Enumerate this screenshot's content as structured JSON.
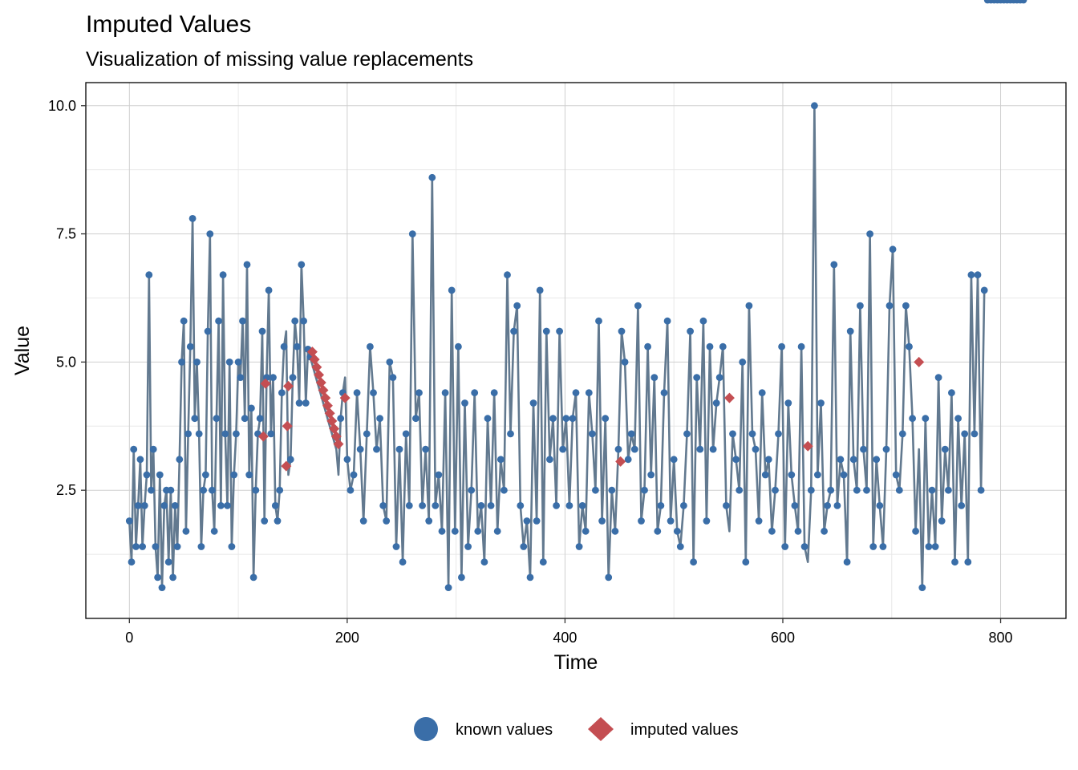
{
  "chart_data": {
    "type": "line",
    "title": "Imputed Values",
    "subtitle": "Visualization of missing value replacements",
    "xlabel": "Time",
    "ylabel": "Value",
    "xlim": [
      -40,
      860
    ],
    "ylim": [
      0.0,
      10.45
    ],
    "xticks": [
      0,
      200,
      400,
      600,
      800
    ],
    "yticks": [
      2.5,
      5.0,
      7.5,
      10.0
    ],
    "xtick_labels": [
      "0",
      "200",
      "400",
      "600",
      "800"
    ],
    "ytick_labels": [
      "2.5",
      "5.0",
      "7.5",
      "10.0"
    ],
    "grid": true,
    "legend_position": "bottom",
    "colors": {
      "line": "#62798f",
      "known": "#3a6ea8",
      "imputed": "#c44e52",
      "grid_major": "#cfcfcf",
      "grid_minor": "#e8e8e8",
      "axis": "#000000"
    },
    "series": [
      {
        "name": "known values",
        "marker": "circle",
        "color": "#3a6ea8"
      },
      {
        "name": "imputed values",
        "marker": "diamond",
        "color": "#c44e52"
      }
    ],
    "line_x": [
      0,
      2,
      4,
      6,
      8,
      10,
      12,
      14,
      16,
      18,
      20,
      22,
      24,
      26,
      28,
      30,
      32,
      34,
      36,
      38,
      40,
      42,
      44,
      46,
      48,
      50,
      52,
      54,
      56,
      58,
      60,
      62,
      64,
      66,
      68,
      70,
      72,
      74,
      76,
      78,
      80,
      82,
      84,
      86,
      88,
      90,
      92,
      94,
      96,
      98,
      100,
      102,
      104,
      106,
      108,
      110,
      112,
      114,
      116,
      118,
      120,
      122,
      124,
      126,
      128,
      130,
      132,
      134,
      136,
      138,
      140,
      142,
      144,
      146,
      148,
      150,
      152,
      154,
      156,
      158,
      160,
      162,
      164,
      166,
      168,
      170,
      172,
      174,
      176,
      178,
      180,
      182,
      184,
      186,
      188,
      190,
      192,
      194,
      196,
      198,
      200,
      203,
      206,
      209,
      212,
      215,
      218,
      221,
      224,
      227,
      230,
      233,
      236,
      239,
      242,
      245,
      248,
      251,
      254,
      257,
      260,
      263,
      266,
      269,
      272,
      275,
      278,
      281,
      284,
      287,
      290,
      293,
      296,
      299,
      302,
      305,
      308,
      311,
      314,
      317,
      320,
      323,
      326,
      329,
      332,
      335,
      338,
      341,
      344,
      347,
      350,
      353,
      356,
      359,
      362,
      365,
      368,
      371,
      374,
      377,
      380,
      383,
      386,
      389,
      392,
      395,
      398,
      401,
      404,
      407,
      410,
      413,
      416,
      419,
      422,
      425,
      428,
      431,
      434,
      437,
      440,
      443,
      446,
      449,
      452,
      455,
      458,
      461,
      464,
      467,
      470,
      473,
      476,
      479,
      482,
      485,
      488,
      491,
      494,
      497,
      500,
      503,
      506,
      509,
      512,
      515,
      518,
      521,
      524,
      527,
      530,
      533,
      536,
      539,
      542,
      545,
      548,
      551,
      554,
      557,
      560,
      563,
      566,
      569,
      572,
      575,
      578,
      581,
      584,
      587,
      590,
      593,
      596,
      599,
      602,
      605,
      608,
      611,
      614,
      617,
      620,
      623,
      626,
      629,
      632,
      635,
      638,
      641,
      644,
      647,
      650,
      653,
      656,
      659,
      662,
      665,
      668,
      671,
      674,
      677,
      680,
      683,
      686,
      689,
      692,
      695,
      698,
      701,
      704,
      707,
      710,
      713,
      716,
      719,
      722,
      725,
      728,
      731,
      734,
      737,
      740,
      743,
      746,
      749,
      752,
      755,
      758,
      761,
      764,
      767,
      770,
      773,
      776,
      779,
      782,
      785,
      788,
      791,
      794,
      797,
      800,
      803,
      806,
      809,
      812,
      815,
      818,
      821
    ],
    "line_y": [
      1.9,
      1.1,
      3.3,
      1.4,
      2.2,
      3.1,
      1.4,
      2.2,
      2.8,
      6.7,
      2.5,
      3.3,
      1.4,
      0.8,
      2.8,
      0.6,
      2.2,
      2.5,
      1.1,
      2.5,
      0.8,
      2.2,
      1.4,
      3.1,
      5.0,
      5.8,
      1.7,
      3.6,
      5.3,
      7.8,
      3.9,
      5.0,
      3.6,
      1.4,
      2.5,
      2.8,
      5.6,
      7.5,
      2.5,
      1.7,
      3.9,
      5.8,
      2.2,
      6.7,
      3.6,
      2.2,
      5.0,
      1.4,
      2.8,
      3.6,
      5.0,
      4.7,
      5.8,
      3.9,
      6.9,
      2.8,
      4.1,
      0.8,
      2.5,
      3.6,
      3.9,
      5.6,
      1.9,
      4.7,
      6.4,
      3.6,
      4.7,
      2.2,
      1.9,
      2.5,
      4.4,
      5.3,
      5.6,
      2.8,
      3.1,
      4.7,
      5.8,
      5.3,
      4.2,
      6.9,
      5.8,
      4.2,
      5.25,
      5.1,
      4.95,
      4.8,
      4.65,
      4.5,
      4.35,
      4.2,
      4.05,
      3.9,
      3.75,
      3.6,
      3.45,
      3.3,
      2.8,
      3.9,
      4.4,
      4.7,
      3.1,
      2.5,
      2.8,
      4.4,
      3.3,
      1.9,
      3.6,
      5.3,
      4.4,
      3.3,
      3.9,
      2.2,
      1.9,
      5.0,
      4.7,
      1.4,
      3.3,
      1.1,
      3.6,
      2.2,
      7.5,
      3.9,
      4.4,
      2.2,
      3.3,
      1.9,
      8.6,
      2.2,
      2.8,
      1.7,
      4.4,
      0.6,
      6.4,
      1.7,
      5.3,
      0.8,
      4.2,
      1.4,
      2.5,
      4.4,
      1.7,
      2.2,
      1.1,
      3.9,
      2.2,
      4.4,
      1.7,
      3.1,
      2.5,
      6.7,
      3.6,
      5.6,
      6.1,
      2.2,
      1.4,
      1.9,
      0.8,
      4.2,
      1.9,
      6.4,
      1.1,
      5.6,
      3.1,
      3.9,
      2.2,
      5.6,
      3.3,
      3.9,
      2.2,
      3.9,
      4.4,
      1.4,
      2.2,
      1.7,
      4.4,
      3.6,
      2.5,
      5.8,
      1.9,
      3.9,
      0.8,
      2.5,
      1.7,
      3.3,
      5.6,
      5.0,
      3.1,
      3.6,
      3.3,
      6.1,
      1.9,
      2.5,
      5.3,
      2.8,
      4.7,
      1.7,
      2.2,
      4.4,
      5.8,
      1.9,
      3.1,
      1.7,
      1.4,
      2.2,
      3.6,
      5.6,
      1.1,
      4.7,
      3.3,
      5.8,
      1.9,
      5.3,
      3.3,
      4.2,
      4.7,
      5.3,
      2.2,
      1.7,
      3.6,
      3.1,
      2.5,
      5.0,
      1.1,
      6.1,
      3.6,
      3.3,
      1.9,
      4.4,
      2.8,
      3.1,
      1.7,
      2.5,
      3.6,
      5.3,
      1.4,
      4.2,
      2.8,
      2.2,
      1.7,
      5.3,
      1.4,
      1.1,
      2.5,
      10.0,
      2.8,
      4.2,
      1.7,
      2.2,
      2.5,
      6.9,
      2.2,
      3.1,
      2.8,
      1.1,
      5.6,
      3.1,
      2.5,
      6.1,
      3.3,
      2.5,
      7.5,
      1.4,
      3.1,
      2.2,
      1.4,
      3.3,
      6.1,
      7.2,
      2.8,
      2.5,
      3.6,
      6.1,
      5.3,
      3.9,
      1.7,
      3.3,
      0.6,
      3.9,
      1.4,
      2.5,
      1.4,
      4.7,
      1.9,
      3.3,
      2.5,
      4.4,
      1.1,
      3.9,
      2.2,
      3.6,
      1.1,
      6.7,
      3.6,
      6.7,
      2.5,
      6.4
    ],
    "imputed_x": [
      123,
      125,
      144,
      145,
      146,
      168,
      170,
      172,
      174,
      176,
      178,
      180,
      182,
      184,
      186,
      188,
      190,
      192,
      198,
      451,
      551,
      623,
      725
    ],
    "imputed_y": [
      3.55,
      4.58,
      2.97,
      3.75,
      4.53,
      5.2,
      5.05,
      4.9,
      4.75,
      4.6,
      4.45,
      4.3,
      4.15,
      4.0,
      3.85,
      3.7,
      3.55,
      3.4,
      4.3,
      3.06,
      4.3,
      3.36,
      5.0
    ]
  }
}
